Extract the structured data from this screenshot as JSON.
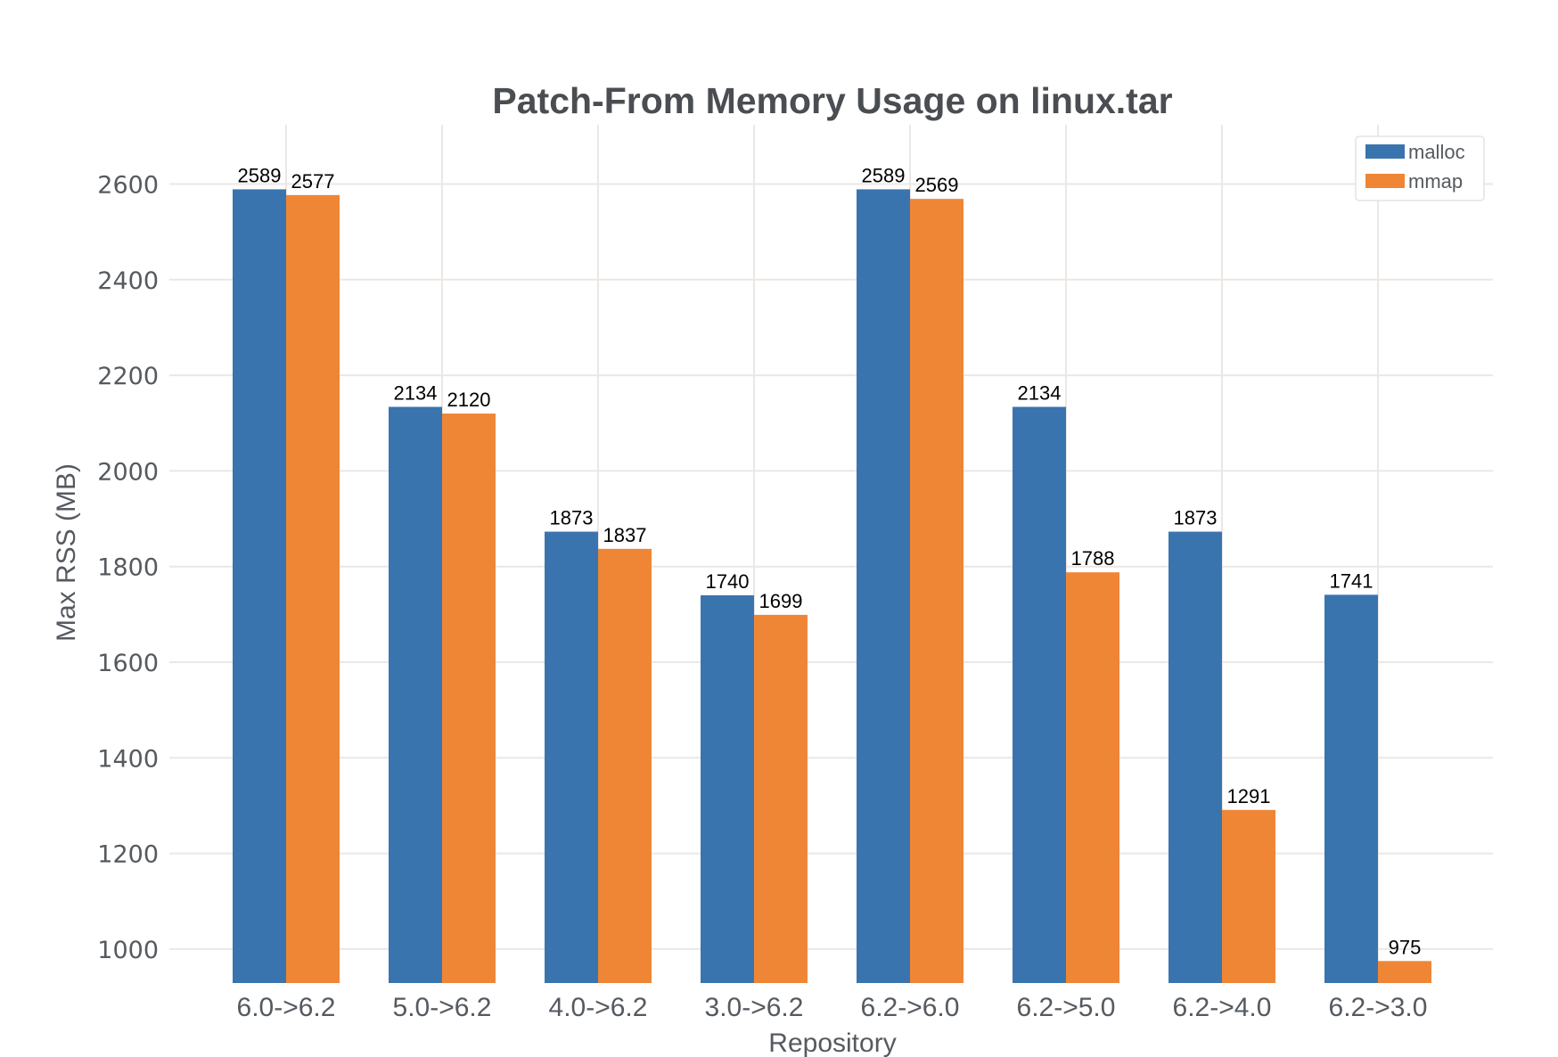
{
  "chart_data": {
    "type": "bar",
    "title": "Patch-From Memory Usage on linux.tar",
    "xlabel": "Repository",
    "ylabel": "Max RSS (MB)",
    "categories": [
      "6.0->6.2",
      "5.0->6.2",
      "4.0->6.2",
      "3.0->6.2",
      "6.2->6.0",
      "6.2->5.0",
      "6.2->4.0",
      "6.2->3.0"
    ],
    "series": [
      {
        "name": "malloc",
        "color": "#3a74ae",
        "values": [
          2589,
          2134,
          1873,
          1740,
          2589,
          2134,
          1873,
          1741
        ]
      },
      {
        "name": "mmap",
        "color": "#ef8636",
        "values": [
          2577,
          2120,
          1837,
          1699,
          2569,
          1788,
          1291,
          975
        ]
      }
    ],
    "yticks": [
      1000,
      1200,
      1400,
      1600,
      1800,
      2000,
      2200,
      2400,
      2600
    ],
    "ylim": [
      929,
      2720
    ],
    "grid": true,
    "legend_position": "upper right",
    "data_labels": true
  }
}
